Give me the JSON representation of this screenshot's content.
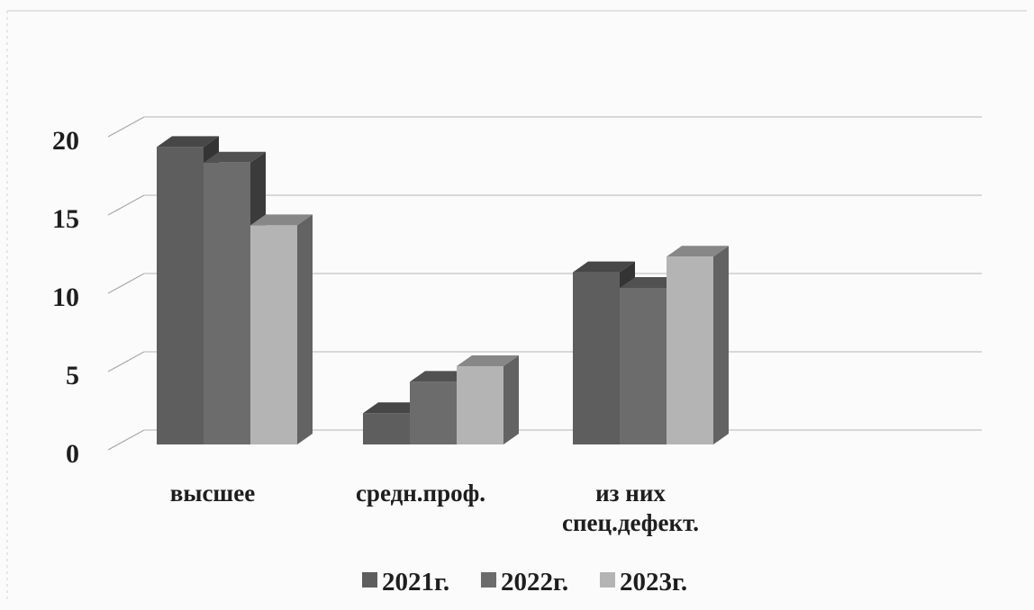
{
  "chart_data": {
    "type": "bar",
    "title": "",
    "xlabel": "",
    "ylabel": "",
    "ylim": [
      0,
      20
    ],
    "yticks": [
      "0",
      "5",
      "10",
      "15",
      "20"
    ],
    "grid": true,
    "legend_position": "bottom",
    "three_d": true,
    "categories": [
      [
        "высшее"
      ],
      [
        "средн.проф."
      ],
      [
        "из них",
        "спец.дефект."
      ]
    ],
    "series": [
      {
        "name": "2021г.",
        "values": [
          19,
          2,
          11
        ],
        "color": "#5e5e5e"
      },
      {
        "name": "2022г.",
        "values": [
          18,
          4,
          10
        ],
        "color": "#6c6c6c"
      },
      {
        "name": "2023г.",
        "values": [
          14,
          5,
          12
        ],
        "color": "#b4b4b4"
      }
    ]
  }
}
